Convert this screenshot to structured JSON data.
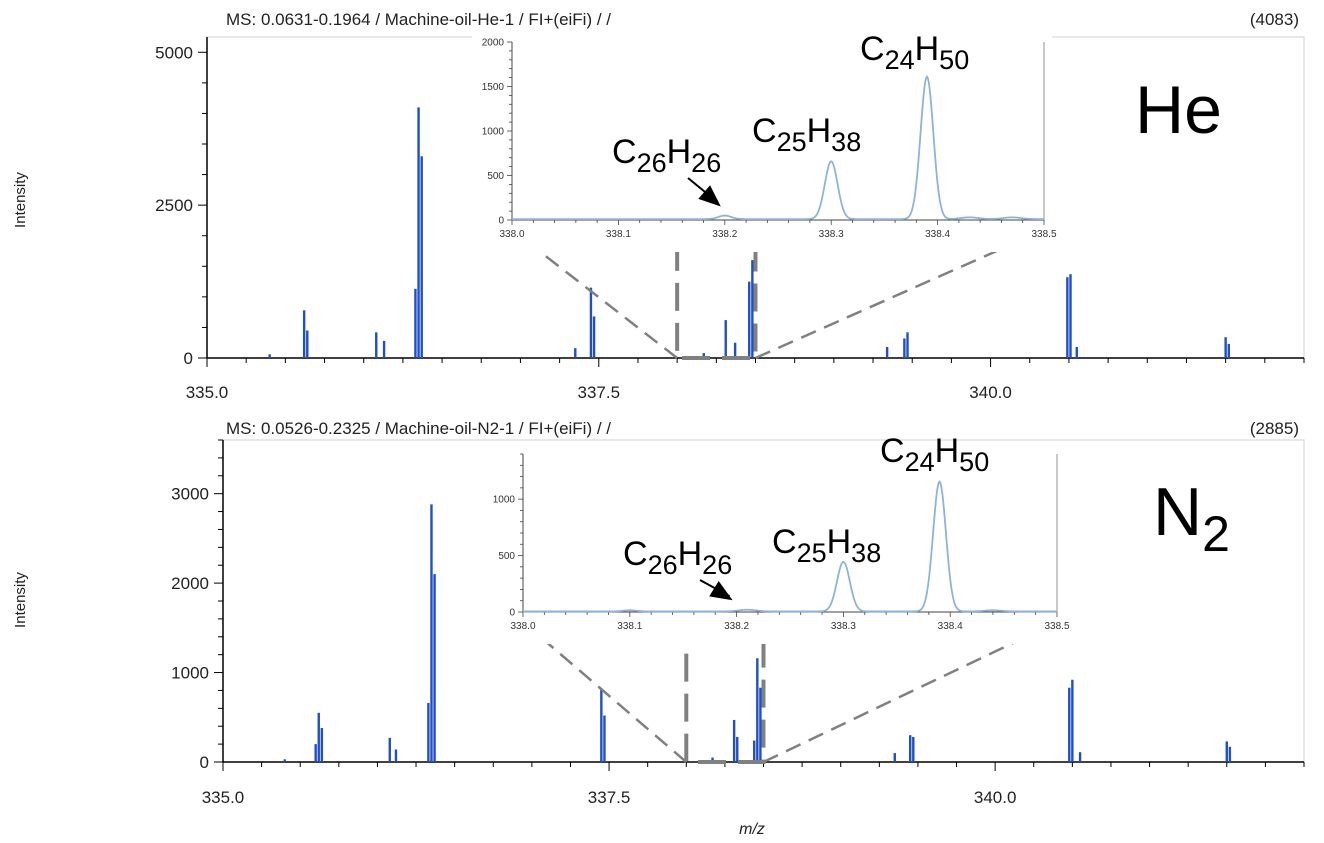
{
  "chart_data": [
    {
      "type": "line",
      "header": {
        "left": "MS: 0.0631-0.1964 / Machine-oil-He-1 / FI+(eiFi) /  /",
        "right": "(4083)"
      },
      "gas": {
        "base": "He",
        "sub": ""
      },
      "ylabel": "Intensity",
      "xlim": [
        335.0,
        342.0
      ],
      "ylim": [
        0,
        5250
      ],
      "yticks": [
        0,
        2500,
        5000
      ],
      "xticks": [
        335.0,
        337.5,
        340.0
      ],
      "series": [
        {
          "values": [
            [
              335.4,
              60
            ],
            [
              335.62,
              780
            ],
            [
              335.64,
              450
            ],
            [
              336.08,
              420
            ],
            [
              336.13,
              280
            ],
            [
              336.33,
              1130
            ],
            [
              336.35,
              4100
            ],
            [
              336.37,
              3300
            ],
            [
              337.35,
              160
            ],
            [
              337.45,
              1150
            ],
            [
              337.47,
              680
            ],
            [
              338.17,
              80
            ],
            [
              338.31,
              620
            ],
            [
              338.37,
              250
            ],
            [
              338.46,
              1250
            ],
            [
              338.48,
              1600
            ],
            [
              339.34,
              180
            ],
            [
              339.45,
              320
            ],
            [
              339.47,
              420
            ],
            [
              340.49,
              1320
            ],
            [
              340.51,
              1370
            ],
            [
              340.55,
              180
            ],
            [
              341.5,
              340
            ],
            [
              341.52,
              230
            ]
          ]
        }
      ],
      "zoom_box": {
        "x": [
          338.0,
          338.5
        ],
        "y": [
          0,
          1900
        ]
      },
      "inset": {
        "xlim": [
          338.0,
          338.5
        ],
        "ylim": [
          0,
          2000
        ],
        "xticks": [
          338.0,
          338.1,
          338.2,
          338.3,
          338.4,
          338.5
        ],
        "yticks": [
          0,
          500,
          1000,
          1500,
          2000
        ],
        "peaks": [
          [
            338.2,
            40,
            0.006
          ],
          [
            338.3,
            650,
            0.006
          ],
          [
            338.39,
            1600,
            0.006
          ],
          [
            338.43,
            20,
            0.008
          ],
          [
            338.47,
            20,
            0.008
          ]
        ],
        "baseline": 10
      },
      "annotations": [
        {
          "base": "C",
          "n1": "26",
          "h": "H",
          "n2": "26",
          "arrow_to": [
            338.2,
            40
          ]
        },
        {
          "base": "C",
          "n1": "25",
          "h": "H",
          "n2": "38"
        },
        {
          "base": "C",
          "n1": "24",
          "h": "H",
          "n2": "50"
        }
      ]
    },
    {
      "type": "line",
      "header": {
        "left": "MS: 0.0526-0.2325 / Machine-oil-N2-1 / FI+(eiFi) /  /",
        "right": "(2885)"
      },
      "gas": {
        "base": "N",
        "sub": "2"
      },
      "ylabel": "Intensity",
      "xlabel": "m/z",
      "xlim": [
        335.0,
        342.0
      ],
      "ylim": [
        0,
        3600
      ],
      "yticks": [
        0,
        1000,
        2000,
        3000
      ],
      "xticks": [
        335.0,
        337.5,
        340.0
      ],
      "series": [
        {
          "values": [
            [
              335.4,
              30
            ],
            [
              335.6,
              200
            ],
            [
              335.62,
              550
            ],
            [
              335.64,
              380
            ],
            [
              336.08,
              270
            ],
            [
              336.12,
              140
            ],
            [
              336.33,
              660
            ],
            [
              336.35,
              2880
            ],
            [
              336.37,
              2100
            ],
            [
              337.45,
              810
            ],
            [
              337.47,
              520
            ],
            [
              338.17,
              50
            ],
            [
              338.31,
              470
            ],
            [
              338.33,
              280
            ],
            [
              338.44,
              240
            ],
            [
              338.46,
              1160
            ],
            [
              338.48,
              830
            ],
            [
              339.35,
              100
            ],
            [
              339.45,
              300
            ],
            [
              339.47,
              280
            ],
            [
              340.48,
              830
            ],
            [
              340.5,
              920
            ],
            [
              340.55,
              110
            ],
            [
              341.5,
              230
            ],
            [
              341.52,
              170
            ]
          ]
        }
      ],
      "zoom_box": {
        "x": [
          338.0,
          338.5
        ],
        "y": [
          0,
          1400
        ]
      },
      "inset": {
        "xlim": [
          338.0,
          338.5
        ],
        "ylim": [
          0,
          1400
        ],
        "xticks": [
          338.0,
          338.1,
          338.2,
          338.3,
          338.4,
          338.5
        ],
        "yticks": [
          0,
          500,
          1000
        ],
        "peaks": [
          [
            338.1,
            10,
            0.006
          ],
          [
            338.21,
            15,
            0.008
          ],
          [
            338.3,
            440,
            0.006
          ],
          [
            338.39,
            1150,
            0.006
          ],
          [
            338.44,
            10,
            0.008
          ]
        ],
        "baseline": 5
      },
      "annotations": [
        {
          "base": "C",
          "n1": "26",
          "h": "H",
          "n2": "26",
          "arrow_to": [
            338.2,
            15
          ]
        },
        {
          "base": "C",
          "n1": "25",
          "h": "H",
          "n2": "38"
        },
        {
          "base": "C",
          "n1": "24",
          "h": "H",
          "n2": "50"
        }
      ]
    }
  ],
  "colors": {
    "spectrum": "#1f4fc4",
    "inset_line": "#8fb3d6",
    "axis": "#000000",
    "zoom": "#808080",
    "text": "#222222"
  }
}
